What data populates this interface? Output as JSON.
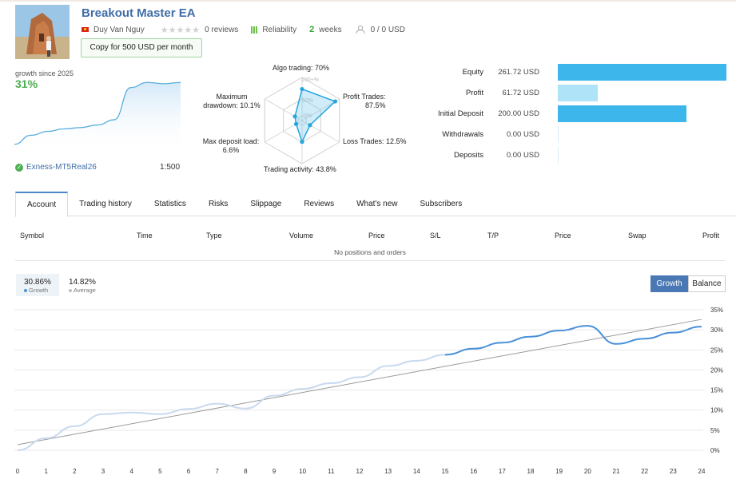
{
  "header": {
    "title": "Breakout Master EA",
    "author": "Duy Van Nguy",
    "reviews": "0 reviews",
    "reliability": "Reliability",
    "weeks_num": "2",
    "weeks_label": "weeks",
    "subscribers": "0 / 0 USD",
    "copy_button": "Copy for 500 USD per month"
  },
  "growth": {
    "label": "growth since 2025",
    "value": "31%",
    "broker": "Exness-MT5Real26",
    "leverage": "1:500",
    "mini_points": [
      2,
      9,
      12,
      14,
      15,
      17,
      21,
      46,
      50,
      49,
      50
    ]
  },
  "radar": {
    "algo": "Algo trading: 70%",
    "profit_trades": "Profit Trades:",
    "profit_trades_val": "87.5%",
    "loss_trades": "Loss Trades: 12.5%",
    "activity": "Trading activity: 43.8%",
    "deposit_load": "Max deposit load:",
    "deposit_load_val": "6.6%",
    "drawdown": "Maximum",
    "drawdown2": "drawdown: 10.1%",
    "ring_100": "100+%",
    "ring_50": "50%",
    "ring_0": "0%",
    "values": [
      70,
      87.5,
      12.5,
      43.8,
      6.6,
      10.1
    ]
  },
  "stats": [
    {
      "label": "Equity",
      "value": "261.72 USD",
      "level": 1.0,
      "color": "#3cb6eb"
    },
    {
      "label": "Profit",
      "value": "61.72 USD",
      "level": 0.236,
      "color": "#aee3f8"
    },
    {
      "label": "Initial Deposit",
      "value": "200.00 USD",
      "level": 0.764,
      "color": "#3cb6eb"
    },
    {
      "label": "Withdrawals",
      "value": "0.00 USD",
      "level": 0,
      "color": "#3cb6eb"
    },
    {
      "label": "Deposits",
      "value": "0.00 USD",
      "level": 0,
      "color": "#3cb6eb"
    }
  ],
  "tabs": [
    "Account",
    "Trading history",
    "Statistics",
    "Risks",
    "Slippage",
    "Reviews",
    "What's new",
    "Subscribers"
  ],
  "table": {
    "columns": [
      "Symbol",
      "Time",
      "Type",
      "Volume",
      "Price",
      "S/L",
      "T/P",
      "Price",
      "Swap",
      "Profit"
    ],
    "empty": "No positions and orders"
  },
  "chart_legend": {
    "growth_val": "30.86%",
    "growth_label": "Growth",
    "avg_val": "14.82%",
    "avg_label": "Average",
    "btn_growth": "Growth",
    "btn_balance": "Balance"
  },
  "chart_data": {
    "type": "line",
    "x": [
      0,
      1,
      2,
      3,
      4,
      5,
      6,
      7,
      8,
      9,
      10,
      11,
      12,
      13,
      14,
      15,
      16,
      17,
      18,
      19,
      20,
      21,
      22,
      23,
      24
    ],
    "ylim": [
      0,
      35
    ],
    "y_ticks": [
      "0%",
      "5%",
      "10%",
      "15%",
      "20%",
      "25%",
      "30%",
      "35%"
    ],
    "series": [
      {
        "name": "Growth",
        "values": [
          0,
          3,
          6,
          9,
          9.4,
          9,
          10.3,
          11.6,
          10.4,
          13.6,
          15.3,
          16.7,
          18.2,
          21,
          22.3,
          23.8,
          25.3,
          26.8,
          28.3,
          29.8,
          31,
          26.5,
          27.8,
          29.3,
          30.8
        ]
      },
      {
        "name": "Average",
        "values": [
          1.4,
          2.7,
          4,
          5.3,
          6.6,
          7.9,
          9.2,
          10.5,
          11.8,
          13.1,
          14.4,
          15.7,
          17,
          18.3,
          19.6,
          20.9,
          22.2,
          23.5,
          24.8,
          26.1,
          27.4,
          28.7,
          30,
          31.3,
          32.6
        ]
      }
    ],
    "solid_from_x": 15,
    "colors": {
      "growth_dim": "#c9d9ef",
      "growth": "#4a90d9",
      "average": "#9a9a9a",
      "grid": "#e8e8e8"
    }
  }
}
